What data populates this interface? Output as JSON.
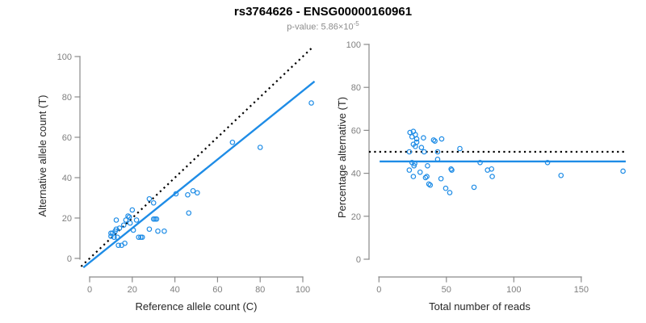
{
  "header": {
    "title": "rs3764626 - ENSG00000160961",
    "pvalue_prefix": "p-value: 5.86×10",
    "pvalue_exponent": "-5"
  },
  "colors": {
    "points_blue": "#1E8CE6",
    "identity_black": "#000000",
    "axis_gray": "#8a8a8a",
    "tick_label_gray": "#7f7f7f"
  },
  "chart_data": [
    {
      "type": "scatter",
      "title": "",
      "xlabel": "Reference allele count (C)",
      "ylabel": "Alternative allele count (T)",
      "xticks": [
        0,
        20,
        40,
        60,
        80,
        100
      ],
      "yticks": [
        0,
        20,
        40,
        60,
        80,
        100
      ],
      "xlim": [
        -4,
        105.5
      ],
      "ylim": [
        -4.5,
        104.5
      ],
      "grid": false,
      "legend": "none",
      "marker": "open-circle",
      "points": [
        [
          10,
          12.5
        ],
        [
          10.8,
          12.5
        ],
        [
          10,
          11
        ],
        [
          11.5,
          10.5
        ],
        [
          13,
          10.5
        ],
        [
          12,
          13.5
        ],
        [
          12.5,
          14.5
        ],
        [
          12.5,
          19
        ],
        [
          14,
          15
        ],
        [
          13.5,
          6.5
        ],
        [
          15,
          6.5
        ],
        [
          16.5,
          7.5
        ],
        [
          16,
          16.5
        ],
        [
          17,
          19
        ],
        [
          18,
          21
        ],
        [
          18.6,
          20.5
        ],
        [
          19,
          17.5
        ],
        [
          20,
          24
        ],
        [
          20.5,
          14
        ],
        [
          22,
          19
        ],
        [
          23,
          10.5
        ],
        [
          24,
          10.5
        ],
        [
          24.7,
          10.5
        ],
        [
          28,
          14.5
        ],
        [
          30,
          19.5
        ],
        [
          30.7,
          19.5
        ],
        [
          31.4,
          19.5
        ],
        [
          32,
          13.5
        ],
        [
          35,
          13.5
        ],
        [
          28,
          29.5
        ],
        [
          30,
          27.5
        ],
        [
          40.5,
          32
        ],
        [
          46,
          31.5
        ],
        [
          48.5,
          33.5
        ],
        [
          50.5,
          32.5
        ],
        [
          46.5,
          22.5
        ],
        [
          67,
          57.5
        ],
        [
          80,
          55
        ],
        [
          104,
          77
        ]
      ],
      "lines": [
        {
          "name": "identity-line",
          "slope": 1,
          "intercept": 0,
          "style": "dotted",
          "color": "#000000",
          "width": 2.2
        },
        {
          "name": "fit-line",
          "slope": 0.85,
          "intercept": -2,
          "style": "solid",
          "color": "#1E8CE6",
          "width": 2.4
        }
      ]
    },
    {
      "type": "scatter",
      "title": "",
      "xlabel": "Total number of reads",
      "ylabel": "Percentage alternative (T)",
      "xticks": [
        0,
        50,
        100,
        150
      ],
      "yticks": [
        0,
        20,
        40,
        60,
        80,
        100
      ],
      "xlim": [
        -7.4,
        183
      ],
      "ylim": [
        -4,
        104
      ],
      "grid": false,
      "legend": "none",
      "marker": "open-circle",
      "points": [
        [
          23,
          59
        ],
        [
          25.5,
          59.5
        ],
        [
          27,
          58
        ],
        [
          24.5,
          57
        ],
        [
          28,
          56
        ],
        [
          33,
          56.5
        ],
        [
          40.5,
          55.5
        ],
        [
          41.5,
          55
        ],
        [
          46.5,
          56
        ],
        [
          25.5,
          53.5
        ],
        [
          28,
          54.5
        ],
        [
          27,
          52.5
        ],
        [
          31.5,
          52
        ],
        [
          22.5,
          50
        ],
        [
          33.5,
          50
        ],
        [
          43.5,
          50
        ],
        [
          60,
          51.5
        ],
        [
          43.5,
          46.5
        ],
        [
          24.5,
          45
        ],
        [
          26.5,
          44.5
        ],
        [
          26,
          43.5
        ],
        [
          22.5,
          41.5
        ],
        [
          30.5,
          40.5
        ],
        [
          36,
          43.5
        ],
        [
          53.5,
          42
        ],
        [
          54,
          41.5
        ],
        [
          75,
          45
        ],
        [
          35.5,
          38.5
        ],
        [
          25.5,
          38.5
        ],
        [
          34.5,
          38
        ],
        [
          46,
          37.5
        ],
        [
          37,
          35
        ],
        [
          38,
          34.5
        ],
        [
          49.5,
          33
        ],
        [
          52.5,
          31
        ],
        [
          70.5,
          33.5
        ],
        [
          80.5,
          41.5
        ],
        [
          83.5,
          42
        ],
        [
          84,
          38.5
        ],
        [
          125,
          45
        ],
        [
          135,
          39
        ],
        [
          181,
          41
        ]
      ],
      "lines": [
        {
          "name": "null-50pct-line",
          "y": 50,
          "style": "dotted",
          "color": "#000000",
          "width": 2.2
        },
        {
          "name": "mean-pct-line",
          "y": 45.5,
          "x_from": 0.5,
          "style": "solid",
          "color": "#1E8CE6",
          "width": 2.4
        }
      ]
    }
  ]
}
